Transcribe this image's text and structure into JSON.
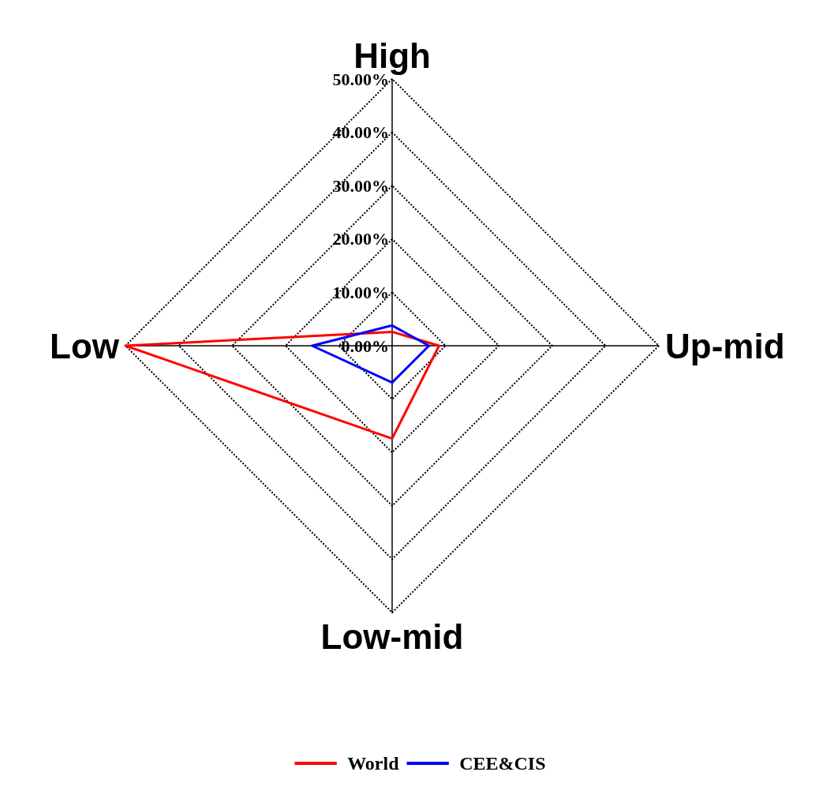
{
  "chart_data": {
    "type": "radar",
    "categories": [
      "High",
      "Up-mid",
      "Low-mid",
      "Low"
    ],
    "series": [
      {
        "name": "World",
        "color": "#ff0000",
        "values": [
          2.6,
          8.8,
          17.4,
          50
        ]
      },
      {
        "name": "CEE&CIS",
        "color": "#0000ff",
        "values": [
          3.8,
          6.9,
          6.9,
          15
        ]
      }
    ],
    "ylim": [
      0,
      50
    ],
    "yticks": [
      {
        "value": 0,
        "label": "0.00%"
      },
      {
        "value": 10,
        "label": "10.00%"
      },
      {
        "value": 20,
        "label": "20.00%"
      },
      {
        "value": 30,
        "label": "30.00%"
      },
      {
        "value": 40,
        "label": "40.00%"
      },
      {
        "value": 50,
        "label": "50.00%"
      }
    ],
    "grid": true,
    "legend": "bottom",
    "marker": "none",
    "line_style": "solid"
  }
}
